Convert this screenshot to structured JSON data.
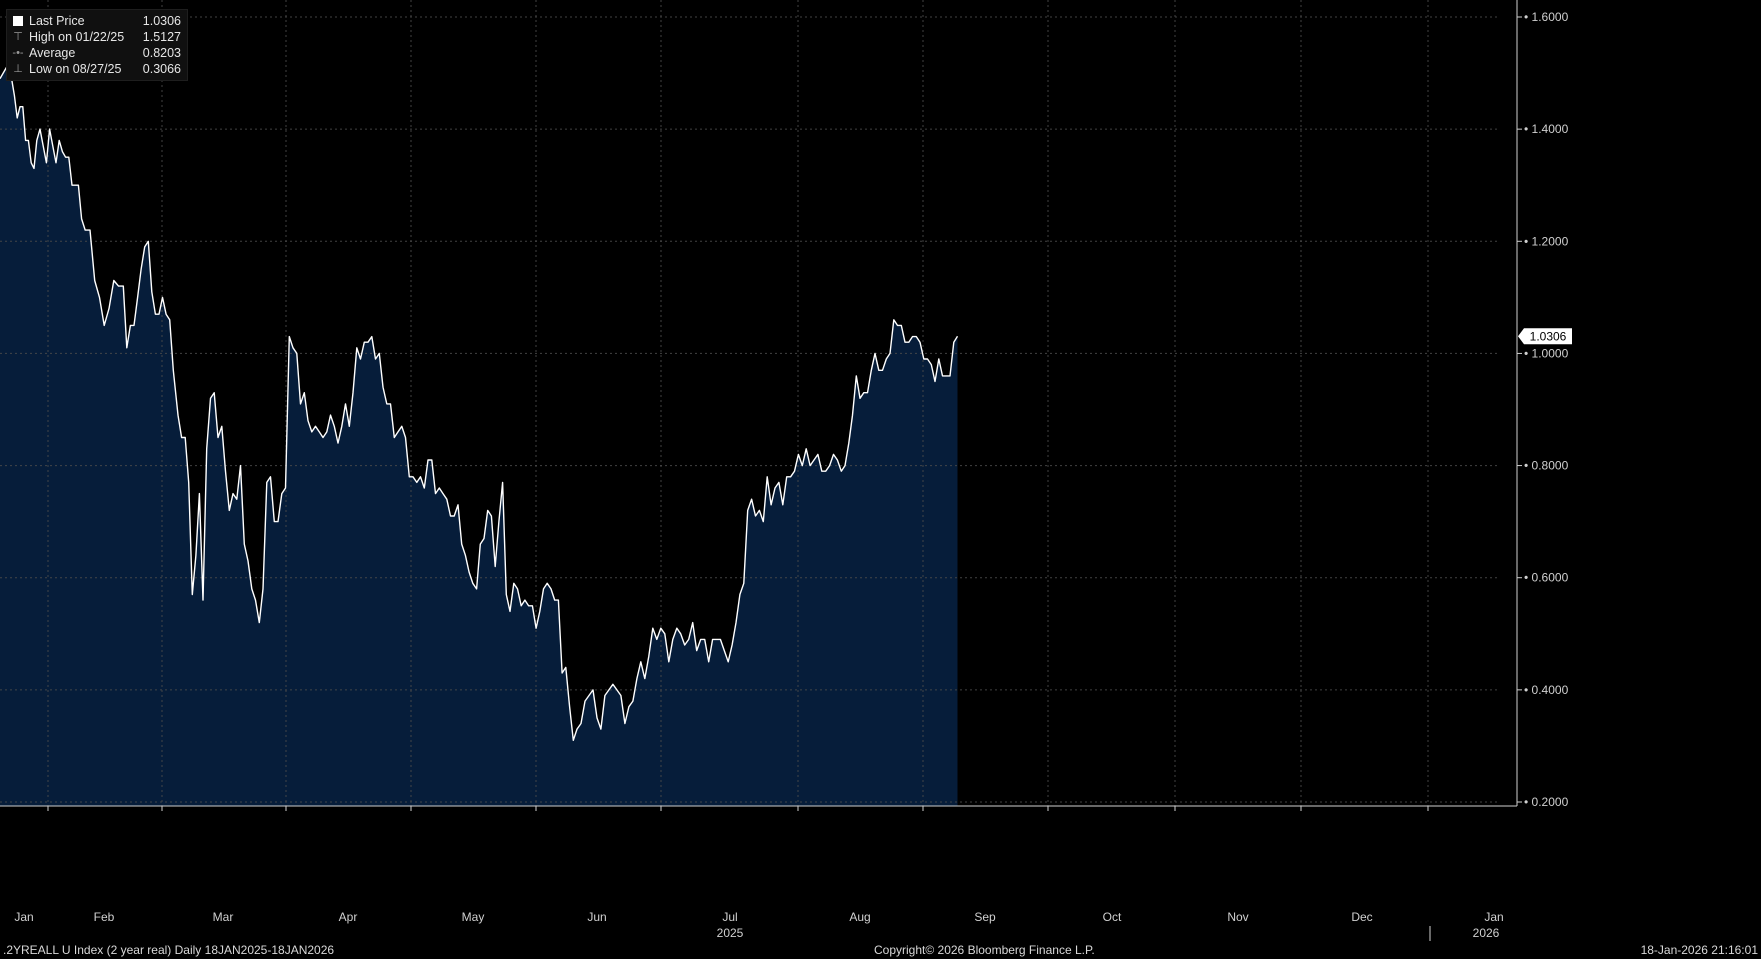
{
  "legend": [
    {
      "icon": "square-swatch-icon",
      "label": "Last Price",
      "value": "1.0306"
    },
    {
      "icon": "high-marker-icon",
      "label": "High on 01/22/25",
      "value": "1.5127"
    },
    {
      "icon": "average-marker-icon",
      "label": "Average",
      "value": "0.8203"
    },
    {
      "icon": "low-marker-icon",
      "label": "Low on 08/27/25",
      "value": "0.3066"
    }
  ],
  "footer": {
    "left": ".2YREALL U Index (2 year real) Daily 18JAN2025-18JAN2026",
    "center": "Copyright© 2026 Bloomberg Finance L.P.",
    "right": "18-Jan-2026 21:16:01"
  },
  "colors": {
    "background": "#000000",
    "area_fill": "#061d3a",
    "line": "#ffffff",
    "grid": "#4a4a4a",
    "axis_text": "#d0d0d0"
  },
  "chart_data": {
    "type": "area",
    "title": "",
    "xlabel": "",
    "ylabel": "",
    "ylim": [
      0.2,
      1.6
    ],
    "yticks": [
      "1.6000",
      "1.4000",
      "1.2000",
      "1.0000",
      "0.8000",
      "0.6000",
      "0.4000",
      "0.2000"
    ],
    "month_labels": [
      "Jan",
      "Feb",
      "Mar",
      "Apr",
      "May",
      "Jun",
      "Jul",
      "Aug",
      "Sep",
      "Oct",
      "Nov",
      "Dec",
      "Jan"
    ],
    "year_labels": [
      {
        "label": "2025",
        "month_index": 6
      },
      {
        "label": "2026",
        "month_index": 12
      }
    ],
    "last_value_label": "1.0306",
    "grid": true,
    "legend_position": "top-left",
    "series": [
      {
        "color": "#ffffff",
        "points": [
          [
            0.0,
            1.49
          ],
          [
            0.03,
            1.51
          ],
          [
            0.06,
            1.49
          ],
          [
            0.095,
            1.49
          ],
          [
            0.13,
            1.46
          ],
          [
            0.165,
            1.42
          ],
          [
            0.2,
            1.44
          ],
          [
            0.235,
            1.44
          ],
          [
            0.27,
            1.38
          ],
          [
            0.305,
            1.38
          ],
          [
            0.34,
            1.34
          ],
          [
            0.375,
            1.33
          ],
          [
            0.41,
            1.38
          ],
          [
            0.45,
            1.4
          ],
          [
            0.49,
            1.37
          ],
          [
            0.53,
            1.34
          ],
          [
            0.57,
            1.4
          ],
          [
            0.61,
            1.37
          ],
          [
            0.65,
            1.34
          ],
          [
            0.69,
            1.38
          ],
          [
            0.73,
            1.36
          ],
          [
            0.77,
            1.35
          ],
          [
            0.81,
            1.35
          ],
          [
            0.85,
            1.3
          ],
          [
            0.89,
            1.3
          ],
          [
            0.93,
            1.3
          ],
          [
            0.97,
            1.24
          ],
          [
            1.01,
            1.22
          ],
          [
            1.05,
            1.22
          ],
          [
            1.09,
            1.13
          ],
          [
            1.13,
            1.1
          ],
          [
            1.17,
            1.05
          ],
          [
            1.21,
            1.08
          ],
          [
            1.25,
            1.13
          ],
          [
            1.29,
            1.12
          ],
          [
            1.33,
            1.12
          ],
          [
            1.36,
            1.01
          ],
          [
            1.39,
            1.05
          ],
          [
            1.42,
            1.05
          ],
          [
            1.45,
            1.1
          ],
          [
            1.48,
            1.15
          ],
          [
            1.51,
            1.19
          ],
          [
            1.54,
            1.2
          ],
          [
            1.57,
            1.11
          ],
          [
            1.6,
            1.07
          ],
          [
            1.63,
            1.07
          ],
          [
            1.66,
            1.1
          ],
          [
            1.69,
            1.07
          ],
          [
            1.72,
            1.06
          ],
          [
            1.75,
            0.97
          ],
          [
            1.79,
            0.89
          ],
          [
            1.82,
            0.85
          ],
          [
            1.85,
            0.85
          ],
          [
            1.88,
            0.77
          ],
          [
            1.91,
            0.57
          ],
          [
            1.94,
            0.64
          ],
          [
            1.97,
            0.75
          ],
          [
            2.0,
            0.56
          ],
          [
            2.03,
            0.83
          ],
          [
            2.06,
            0.92
          ],
          [
            2.09,
            0.93
          ],
          [
            2.12,
            0.85
          ],
          [
            2.15,
            0.87
          ],
          [
            2.18,
            0.79
          ],
          [
            2.21,
            0.72
          ],
          [
            2.24,
            0.75
          ],
          [
            2.27,
            0.74
          ],
          [
            2.3,
            0.8
          ],
          [
            2.33,
            0.66
          ],
          [
            2.36,
            0.63
          ],
          [
            2.39,
            0.58
          ],
          [
            2.42,
            0.56
          ],
          [
            2.45,
            0.52
          ],
          [
            2.48,
            0.58
          ],
          [
            2.51,
            0.77
          ],
          [
            2.54,
            0.78
          ],
          [
            2.57,
            0.7
          ],
          [
            2.6,
            0.7
          ],
          [
            2.63,
            0.75
          ],
          [
            2.66,
            0.76
          ],
          [
            2.69,
            1.03
          ],
          [
            2.72,
            1.01
          ],
          [
            2.75,
            1.0
          ],
          [
            2.78,
            0.91
          ],
          [
            2.81,
            0.93
          ],
          [
            2.84,
            0.88
          ],
          [
            2.87,
            0.86
          ],
          [
            2.9,
            0.87
          ],
          [
            2.93,
            0.86
          ],
          [
            2.96,
            0.85
          ],
          [
            2.99,
            0.86
          ],
          [
            3.02,
            0.89
          ],
          [
            3.05,
            0.87
          ],
          [
            3.08,
            0.84
          ],
          [
            3.11,
            0.87
          ],
          [
            3.14,
            0.91
          ],
          [
            3.17,
            0.87
          ],
          [
            3.2,
            0.93
          ],
          [
            3.23,
            1.01
          ],
          [
            3.26,
            0.99
          ],
          [
            3.29,
            1.02
          ],
          [
            3.32,
            1.02
          ],
          [
            3.35,
            1.03
          ],
          [
            3.38,
            0.99
          ],
          [
            3.41,
            1.0
          ],
          [
            3.44,
            0.94
          ],
          [
            3.47,
            0.91
          ],
          [
            3.5,
            0.91
          ],
          [
            3.53,
            0.85
          ],
          [
            3.56,
            0.86
          ],
          [
            3.59,
            0.87
          ],
          [
            3.62,
            0.85
          ],
          [
            3.65,
            0.78
          ],
          [
            3.68,
            0.78
          ],
          [
            3.71,
            0.77
          ],
          [
            3.74,
            0.78
          ],
          [
            3.77,
            0.76
          ],
          [
            3.8,
            0.81
          ],
          [
            3.83,
            0.81
          ],
          [
            3.86,
            0.75
          ],
          [
            3.89,
            0.76
          ],
          [
            3.92,
            0.75
          ],
          [
            3.95,
            0.74
          ],
          [
            3.98,
            0.71
          ],
          [
            4.01,
            0.71
          ],
          [
            4.04,
            0.73
          ],
          [
            4.07,
            0.66
          ],
          [
            4.1,
            0.64
          ],
          [
            4.13,
            0.61
          ],
          [
            4.16,
            0.59
          ],
          [
            4.19,
            0.58
          ],
          [
            4.22,
            0.66
          ],
          [
            4.25,
            0.67
          ],
          [
            4.28,
            0.72
          ],
          [
            4.31,
            0.71
          ],
          [
            4.34,
            0.62
          ],
          [
            4.37,
            0.7
          ],
          [
            4.4,
            0.77
          ],
          [
            4.43,
            0.57
          ],
          [
            4.46,
            0.54
          ],
          [
            4.49,
            0.59
          ],
          [
            4.52,
            0.58
          ],
          [
            4.55,
            0.55
          ],
          [
            4.58,
            0.56
          ],
          [
            4.61,
            0.55
          ],
          [
            4.64,
            0.55
          ],
          [
            4.67,
            0.51
          ],
          [
            4.7,
            0.54
          ],
          [
            4.73,
            0.58
          ],
          [
            4.76,
            0.59
          ],
          [
            4.79,
            0.58
          ],
          [
            4.82,
            0.56
          ],
          [
            4.85,
            0.56
          ],
          [
            4.88,
            0.43
          ],
          [
            4.91,
            0.44
          ],
          [
            4.94,
            0.37
          ],
          [
            4.97,
            0.31
          ],
          [
            5.0,
            0.33
          ],
          [
            5.03,
            0.34
          ],
          [
            5.06,
            0.38
          ],
          [
            5.09,
            0.39
          ],
          [
            5.12,
            0.4
          ],
          [
            5.15,
            0.35
          ],
          [
            5.18,
            0.33
          ],
          [
            5.21,
            0.39
          ],
          [
            5.24,
            0.4
          ],
          [
            5.27,
            0.41
          ],
          [
            5.3,
            0.4
          ],
          [
            5.33,
            0.39
          ],
          [
            5.36,
            0.34
          ],
          [
            5.39,
            0.37
          ],
          [
            5.42,
            0.38
          ],
          [
            5.45,
            0.42
          ],
          [
            5.48,
            0.45
          ],
          [
            5.51,
            0.42
          ],
          [
            5.54,
            0.46
          ],
          [
            5.57,
            0.51
          ],
          [
            5.6,
            0.49
          ],
          [
            5.63,
            0.51
          ],
          [
            5.66,
            0.5
          ],
          [
            5.69,
            0.45
          ],
          [
            5.72,
            0.49
          ],
          [
            5.75,
            0.51
          ],
          [
            5.78,
            0.5
          ],
          [
            5.81,
            0.48
          ],
          [
            5.84,
            0.49
          ],
          [
            5.87,
            0.52
          ],
          [
            5.9,
            0.47
          ],
          [
            5.93,
            0.49
          ],
          [
            5.96,
            0.49
          ],
          [
            5.99,
            0.45
          ],
          [
            6.02,
            0.49
          ],
          [
            6.05,
            0.49
          ],
          [
            6.08,
            0.49
          ],
          [
            6.11,
            0.47
          ],
          [
            6.14,
            0.45
          ],
          [
            6.17,
            0.48
          ],
          [
            6.2,
            0.52
          ],
          [
            6.23,
            0.57
          ],
          [
            6.26,
            0.59
          ],
          [
            6.29,
            0.72
          ],
          [
            6.32,
            0.74
          ],
          [
            6.35,
            0.71
          ],
          [
            6.38,
            0.72
          ],
          [
            6.41,
            0.7
          ],
          [
            6.44,
            0.78
          ],
          [
            6.47,
            0.73
          ],
          [
            6.5,
            0.76
          ],
          [
            6.53,
            0.77
          ],
          [
            6.56,
            0.73
          ],
          [
            6.59,
            0.78
          ],
          [
            6.62,
            0.78
          ],
          [
            6.65,
            0.79
          ],
          [
            6.68,
            0.82
          ],
          [
            6.71,
            0.8
          ],
          [
            6.74,
            0.83
          ],
          [
            6.77,
            0.8
          ],
          [
            6.8,
            0.81
          ],
          [
            6.83,
            0.82
          ],
          [
            6.86,
            0.79
          ],
          [
            6.89,
            0.79
          ],
          [
            6.92,
            0.8
          ],
          [
            6.95,
            0.82
          ],
          [
            6.98,
            0.81
          ],
          [
            7.01,
            0.79
          ],
          [
            7.04,
            0.8
          ],
          [
            7.07,
            0.84
          ],
          [
            7.1,
            0.89
          ],
          [
            7.13,
            0.96
          ],
          [
            7.16,
            0.92
          ],
          [
            7.19,
            0.93
          ],
          [
            7.22,
            0.93
          ],
          [
            7.25,
            0.97
          ],
          [
            7.28,
            1.0
          ],
          [
            7.31,
            0.97
          ],
          [
            7.34,
            0.97
          ],
          [
            7.37,
            0.99
          ],
          [
            7.4,
            1.0
          ],
          [
            7.43,
            1.06
          ],
          [
            7.46,
            1.05
          ],
          [
            7.49,
            1.05
          ],
          [
            7.52,
            1.02
          ],
          [
            7.55,
            1.02
          ],
          [
            7.58,
            1.03
          ],
          [
            7.61,
            1.03
          ],
          [
            7.64,
            1.02
          ],
          [
            7.67,
            0.99
          ],
          [
            7.7,
            0.99
          ],
          [
            7.73,
            0.98
          ],
          [
            7.76,
            0.95
          ],
          [
            7.79,
            0.99
          ],
          [
            7.82,
            0.96
          ],
          [
            7.85,
            0.96
          ],
          [
            7.88,
            0.96
          ],
          [
            7.91,
            1.02
          ],
          [
            7.94,
            1.0306
          ]
        ]
      }
    ]
  }
}
